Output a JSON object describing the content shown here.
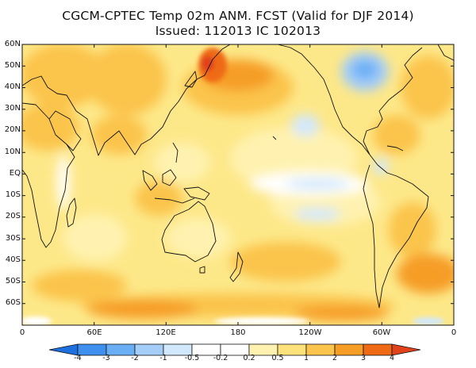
{
  "map": {
    "title": "CGCM-CPTEC Temp 02m ANM. FCST  (Valid for DJF 2014)",
    "subtitle": "Issued:  112013 IC 102013",
    "lat_labels": [
      "60N",
      "50N",
      "40N",
      "30N",
      "20N",
      "10N",
      "EQ",
      "10S",
      "20S",
      "30S",
      "40S",
      "50S",
      "60S"
    ],
    "lon_labels": [
      "0",
      "60E",
      "120E",
      "180",
      "120W",
      "60W",
      "0"
    ],
    "colorbar": {
      "ticks": [
        "-4",
        "-3",
        "-2",
        "-1",
        "-0.5",
        "-0.2",
        "0.2",
        "0.5",
        "1",
        "2",
        "3",
        "4"
      ],
      "colors": [
        "#1e6fe0",
        "#3f8fef",
        "#6aaff5",
        "#a4cdf8",
        "#d2e8fc",
        "#ffffff",
        "#fff2b0",
        "#fde17a",
        "#fbc44c",
        "#f69d25",
        "#ef6a14"
      ]
    }
  }
}
